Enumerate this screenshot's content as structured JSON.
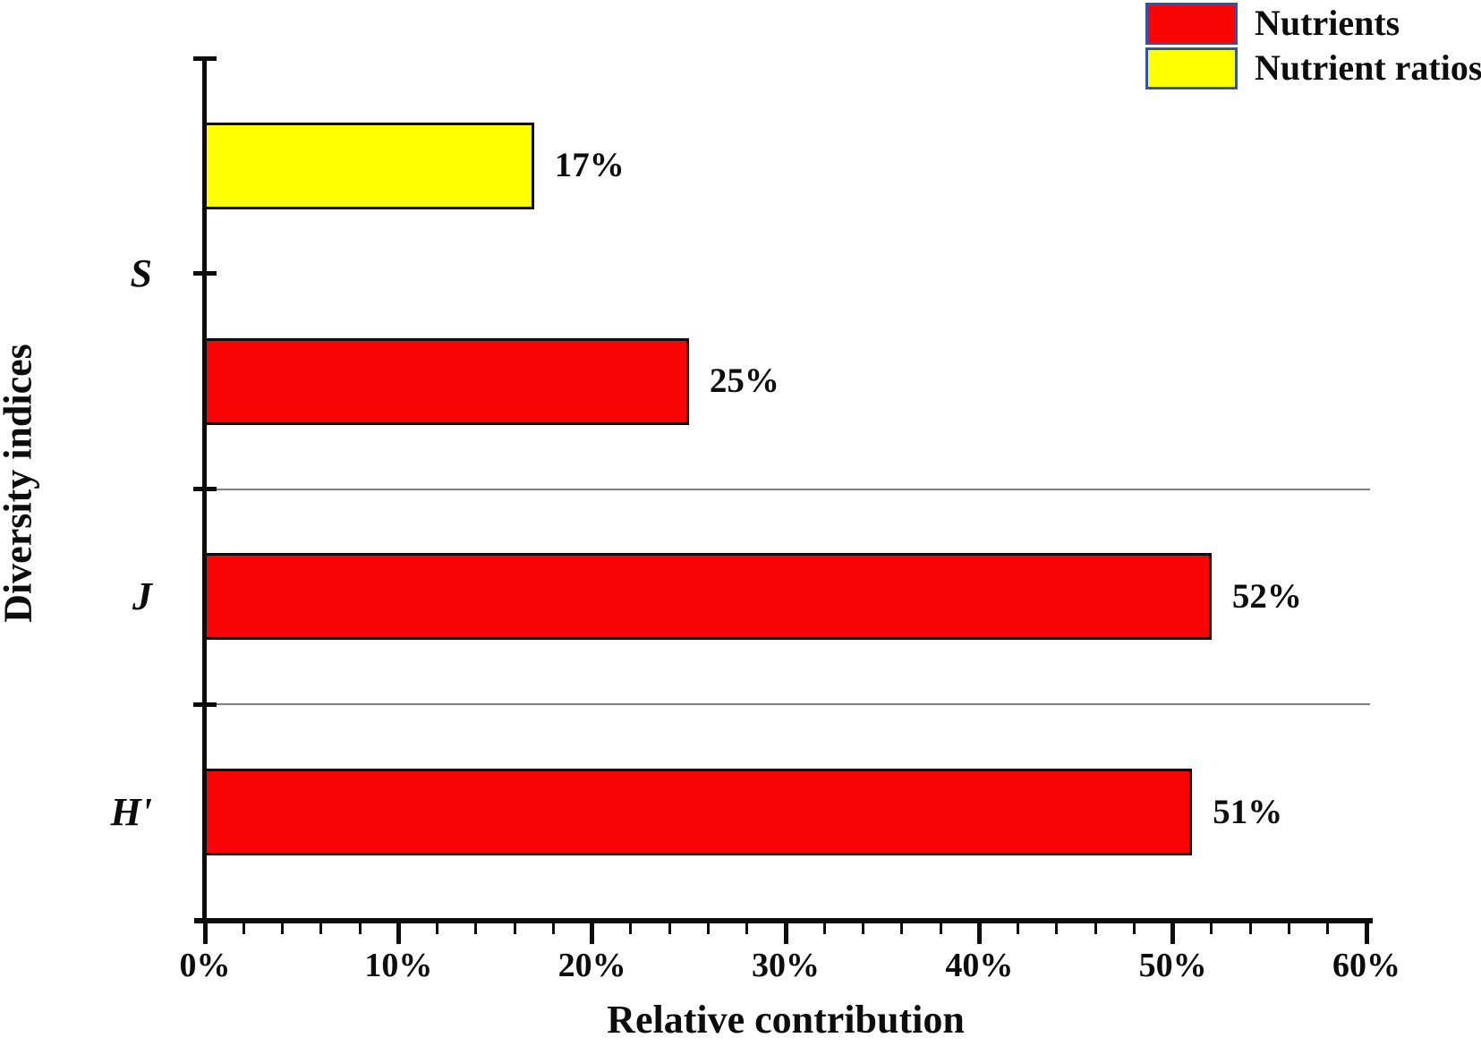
{
  "chart_data": {
    "type": "bar",
    "orientation": "horizontal",
    "title": "",
    "xlabel": "Relative contribution",
    "ylabel": "Diversity indices",
    "xlim": [
      0,
      60
    ],
    "x_major_tick_step": 10,
    "x_minor_tick_step": 2,
    "x_tick_labels": [
      "0%",
      "10%",
      "20%",
      "30%",
      "40%",
      "50%",
      "60%"
    ],
    "grid": "horizontal category separator lines only",
    "legend_position": "top-right",
    "categories": [
      "S",
      "J",
      "H'"
    ],
    "series": [
      {
        "name": "Nutrients",
        "color": "#fa0505"
      },
      {
        "name": "Nutrient ratios",
        "color": "#ffff00"
      }
    ],
    "bars": [
      {
        "category": "S",
        "series": "Nutrient ratios",
        "value": 17,
        "data_label": "17%"
      },
      {
        "category": "S",
        "series": "Nutrients",
        "value": 25,
        "data_label": "25%"
      },
      {
        "category": "J",
        "series": "Nutrients",
        "value": 52,
        "data_label": "52%"
      },
      {
        "category": "H'",
        "series": "Nutrients",
        "value": 51,
        "data_label": "51%"
      }
    ]
  },
  "colors": {
    "bar_border": "#0d0d0d",
    "axis": "#0d0d0d",
    "gridline": "#808080",
    "text": "#0d0d0d",
    "legend_swatch_border": "#3353a4",
    "background": "#ffffff"
  }
}
